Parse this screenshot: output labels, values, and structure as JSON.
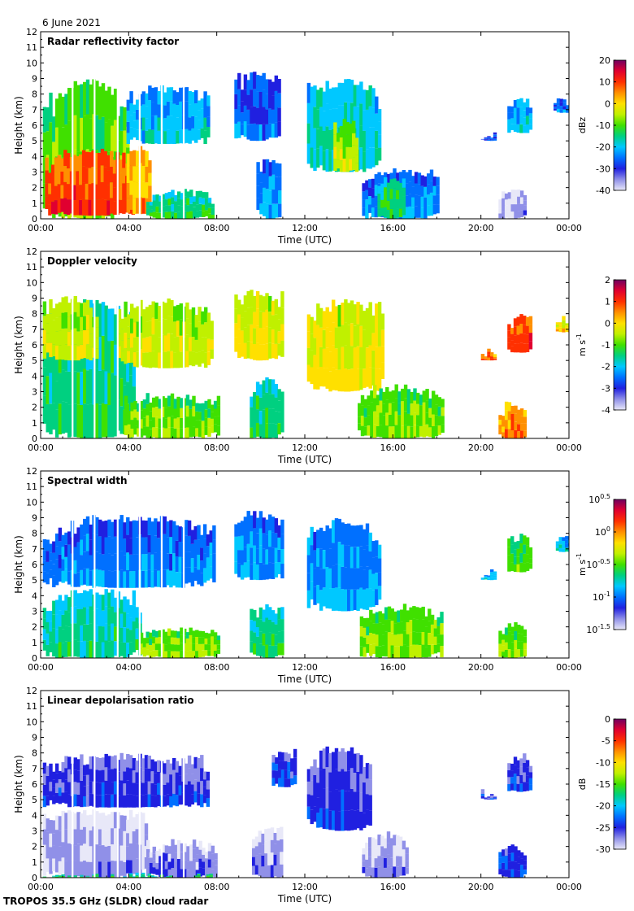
{
  "date": "6 June 2021",
  "footer": "TROPOS 35.5 GHz (SLDR) cloud radar",
  "colors": {
    "scale": [
      "#e8e8f8",
      "#9090e8",
      "#2020e0",
      "#0070ff",
      "#00c8ff",
      "#00d080",
      "#40e000",
      "#c0f000",
      "#ffe000",
      "#ff9000",
      "#ff3000",
      "#e00030",
      "#700060"
    ],
    "frame": "#000000",
    "gap_line": "#ffffff"
  },
  "chart_data": [
    {
      "type": "heatmap",
      "title": "Radar reflectivity factor",
      "xlabel": "Time (UTC)",
      "ylabel": "Height (km)",
      "x_ticks": [
        "00:00",
        "04:00",
        "08:00",
        "12:00",
        "16:00",
        "20:00",
        "00:00"
      ],
      "y_ticks": [
        "0",
        "1",
        "2",
        "3",
        "4",
        "5",
        "6",
        "7",
        "8",
        "9",
        "10",
        "11",
        "12"
      ],
      "xlim": [
        0,
        24
      ],
      "ylim": [
        0,
        12
      ],
      "colorbar": {
        "unit": "dBz",
        "range": [
          -40,
          20
        ],
        "ticks": [
          "20",
          "10",
          "0",
          "-10",
          "-20",
          "-30",
          "-40"
        ]
      },
      "blobs": [
        {
          "t0": 0.1,
          "t1": 3.9,
          "h0": 0.0,
          "h1": 9.0,
          "v": 0.55
        },
        {
          "t0": 0.2,
          "t1": 4.3,
          "h0": 0.2,
          "h1": 4.5,
          "v": 0.85
        },
        {
          "t0": 3.9,
          "t1": 7.6,
          "h0": 4.8,
          "h1": 8.6,
          "v": 0.35
        },
        {
          "t0": 3.9,
          "t1": 5.0,
          "h0": 0.3,
          "h1": 4.8,
          "v": 0.75
        },
        {
          "t0": 4.8,
          "t1": 7.8,
          "h0": 0.0,
          "h1": 2.0,
          "v": 0.45
        },
        {
          "t0": 8.8,
          "t1": 10.8,
          "h0": 5.0,
          "h1": 9.5,
          "v": 0.25
        },
        {
          "t0": 9.8,
          "t1": 10.9,
          "h0": 0.0,
          "h1": 4.0,
          "v": 0.3
        },
        {
          "t0": 12.1,
          "t1": 15.4,
          "h0": 3.0,
          "h1": 9.0,
          "v": 0.4
        },
        {
          "t0": 13.3,
          "t1": 14.3,
          "h0": 3.0,
          "h1": 6.5,
          "v": 0.6
        },
        {
          "t0": 14.6,
          "t1": 18.1,
          "h0": 0.0,
          "h1": 3.3,
          "v": 0.3
        },
        {
          "t0": 15.3,
          "t1": 16.5,
          "h0": 0.0,
          "h1": 2.8,
          "v": 0.45
        },
        {
          "t0": 20.0,
          "t1": 20.7,
          "h0": 5.0,
          "h1": 5.7,
          "v": 0.25
        },
        {
          "t0": 21.2,
          "t1": 22.3,
          "h0": 5.5,
          "h1": 8.0,
          "v": 0.35
        },
        {
          "t0": 23.3,
          "t1": 23.9,
          "h0": 6.8,
          "h1": 7.9,
          "v": 0.25
        },
        {
          "t0": 20.8,
          "t1": 22.0,
          "h0": 0.0,
          "h1": 2.2,
          "v": 0.08
        }
      ]
    },
    {
      "type": "heatmap",
      "title": "Doppler velocity",
      "xlabel": "Time (UTC)",
      "ylabel": "Height (km)",
      "x_ticks": [
        "00:00",
        "04:00",
        "08:00",
        "12:00",
        "16:00",
        "20:00",
        "00:00"
      ],
      "y_ticks": [
        "0",
        "1",
        "2",
        "3",
        "4",
        "5",
        "6",
        "7",
        "8",
        "9",
        "10",
        "11",
        "12"
      ],
      "xlim": [
        0,
        24
      ],
      "ylim": [
        0,
        12
      ],
      "colorbar": {
        "unit": "m s-1",
        "range": [
          -4,
          2
        ],
        "ticks": [
          "2",
          "1",
          "0",
          "-1",
          "-2",
          "-3",
          "-4"
        ]
      },
      "blobs": [
        {
          "t0": 0.1,
          "t1": 4.2,
          "h0": 0.0,
          "h1": 9.0,
          "v": 0.45
        },
        {
          "t0": 0.1,
          "t1": 2.5,
          "h0": 5.0,
          "h1": 9.2,
          "v": 0.62
        },
        {
          "t0": 3.5,
          "t1": 7.8,
          "h0": 4.5,
          "h1": 9.0,
          "v": 0.62
        },
        {
          "t0": 3.8,
          "t1": 8.0,
          "h0": 0.0,
          "h1": 3.0,
          "v": 0.55
        },
        {
          "t0": 8.8,
          "t1": 11.0,
          "h0": 5.0,
          "h1": 9.6,
          "v": 0.65
        },
        {
          "t0": 9.5,
          "t1": 11.0,
          "h0": 0.0,
          "h1": 4.0,
          "v": 0.45
        },
        {
          "t0": 12.1,
          "t1": 15.5,
          "h0": 3.0,
          "h1": 9.0,
          "v": 0.65
        },
        {
          "t0": 14.4,
          "t1": 18.2,
          "h0": 0.0,
          "h1": 3.5,
          "v": 0.55
        },
        {
          "t0": 20.0,
          "t1": 20.7,
          "h0": 5.0,
          "h1": 5.8,
          "v": 0.8
        },
        {
          "t0": 21.2,
          "t1": 22.3,
          "h0": 5.5,
          "h1": 8.0,
          "v": 0.85
        },
        {
          "t0": 23.4,
          "t1": 24.0,
          "h0": 6.8,
          "h1": 7.9,
          "v": 0.7
        },
        {
          "t0": 20.8,
          "t1": 22.0,
          "h0": 0.0,
          "h1": 2.4,
          "v": 0.78
        }
      ]
    },
    {
      "type": "heatmap",
      "title": "Spectral width",
      "xlabel": "Time (UTC)",
      "ylabel": "Height (km)",
      "x_ticks": [
        "00:00",
        "04:00",
        "08:00",
        "12:00",
        "16:00",
        "20:00",
        "00:00"
      ],
      "y_ticks": [
        "0",
        "1",
        "2",
        "3",
        "4",
        "5",
        "6",
        "7",
        "8",
        "9",
        "10",
        "11",
        "12"
      ],
      "xlim": [
        0,
        24
      ],
      "ylim": [
        0,
        12
      ],
      "colorbar": {
        "unit": "m s-1",
        "range": [
          -1.5,
          0.5
        ],
        "ticks": [
          "10^0.5",
          "10^0",
          "10^-0.5",
          "10^-1",
          "10^-1.5"
        ]
      },
      "blobs": [
        {
          "t0": 0.1,
          "t1": 7.8,
          "h0": 4.5,
          "h1": 9.2,
          "v": 0.28
        },
        {
          "t0": 0.1,
          "t1": 4.5,
          "h0": 0.0,
          "h1": 4.5,
          "v": 0.42
        },
        {
          "t0": 4.5,
          "t1": 8.0,
          "h0": 0.0,
          "h1": 2.0,
          "v": 0.55
        },
        {
          "t0": 8.8,
          "t1": 11.0,
          "h0": 5.0,
          "h1": 9.5,
          "v": 0.3
        },
        {
          "t0": 9.5,
          "t1": 11.0,
          "h0": 0.0,
          "h1": 3.5,
          "v": 0.45
        },
        {
          "t0": 12.1,
          "t1": 15.4,
          "h0": 3.0,
          "h1": 9.0,
          "v": 0.32
        },
        {
          "t0": 14.5,
          "t1": 18.2,
          "h0": 0.0,
          "h1": 3.5,
          "v": 0.55
        },
        {
          "t0": 20.0,
          "t1": 20.7,
          "h0": 5.0,
          "h1": 5.7,
          "v": 0.35
        },
        {
          "t0": 21.2,
          "t1": 22.3,
          "h0": 5.5,
          "h1": 8.0,
          "v": 0.5
        },
        {
          "t0": 23.4,
          "t1": 24.0,
          "h0": 6.8,
          "h1": 7.9,
          "v": 0.35
        },
        {
          "t0": 20.8,
          "t1": 22.0,
          "h0": 0.0,
          "h1": 2.3,
          "v": 0.55
        }
      ]
    },
    {
      "type": "heatmap",
      "title": "Linear depolarisation ratio",
      "xlabel": "Time (UTC)",
      "ylabel": "Height (km)",
      "x_ticks": [
        "00:00",
        "04:00",
        "08:00",
        "12:00",
        "16:00",
        "20:00",
        "00:00"
      ],
      "y_ticks": [
        "0",
        "1",
        "2",
        "3",
        "4",
        "5",
        "6",
        "7",
        "8",
        "9",
        "10",
        "11",
        "12"
      ],
      "xlim": [
        0,
        24
      ],
      "ylim": [
        0,
        12
      ],
      "colorbar": {
        "unit": "dB",
        "range": [
          -30,
          0
        ],
        "ticks": [
          "0",
          "-5",
          "-10",
          "-15",
          "-20",
          "-25",
          "-30"
        ]
      },
      "blobs": [
        {
          "t0": 0.1,
          "t1": 7.6,
          "h0": 4.5,
          "h1": 8.0,
          "v": 0.18
        },
        {
          "t0": 0.1,
          "t1": 4.8,
          "h0": 0.0,
          "h1": 4.5,
          "v": 0.08
        },
        {
          "t0": 4.8,
          "t1": 8.0,
          "h0": 0.0,
          "h1": 2.5,
          "v": 0.12
        },
        {
          "t0": 0.1,
          "t1": 8.0,
          "h0": 0.0,
          "h1": 0.35,
          "v": 0.45
        },
        {
          "t0": 9.6,
          "t1": 11.0,
          "h0": 0.0,
          "h1": 3.3,
          "v": 0.1
        },
        {
          "t0": 10.5,
          "t1": 11.5,
          "h0": 5.8,
          "h1": 8.4,
          "v": 0.2
        },
        {
          "t0": 12.1,
          "t1": 15.0,
          "h0": 3.0,
          "h1": 8.5,
          "v": 0.18
        },
        {
          "t0": 14.6,
          "t1": 16.6,
          "h0": 0.0,
          "h1": 3.0,
          "v": 0.1
        },
        {
          "t0": 20.0,
          "t1": 20.7,
          "h0": 5.0,
          "h1": 5.7,
          "v": 0.18
        },
        {
          "t0": 21.2,
          "t1": 22.3,
          "h0": 5.5,
          "h1": 8.0,
          "v": 0.2
        },
        {
          "t0": 20.8,
          "t1": 22.0,
          "h0": 0.0,
          "h1": 2.2,
          "v": 0.22
        }
      ]
    }
  ]
}
